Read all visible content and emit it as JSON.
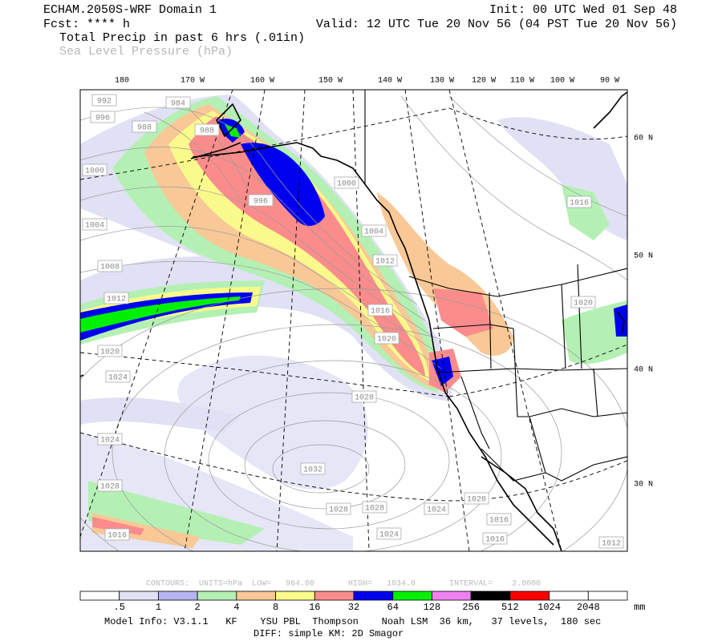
{
  "header": {
    "title": "ECHAM.2050S-WRF Domain 1",
    "init": "Init: 00 UTC Wed 01 Sep 48",
    "forecast": "Fcst: **** h",
    "valid": "Valid: 12 UTC Tue 20 Nov 56 (04 PST Tue 20 Nov 56)",
    "field_1": "Total Precip in past 6 hrs (.01in)",
    "field_2": "Sea Level Pressure (hPa)"
  },
  "map": {
    "longitude_labels": [
      "180",
      "170 W",
      "160 W",
      "150 W",
      "140 W",
      "130 W",
      "120 W",
      "110 W",
      "100 W",
      "90 W"
    ],
    "latitude_labels": [
      "60 N",
      "50 N",
      "40 N",
      "30 N"
    ],
    "isobar_labels": [
      "992",
      "984",
      "996",
      "988",
      "988",
      "1000",
      "1004",
      "1008",
      "1012",
      "1020",
      "1024",
      "1024",
      "1028",
      "1016",
      "1032",
      "1028",
      "1028",
      "1024",
      "1024",
      "1020",
      "1016",
      "1016",
      "1012",
      "1016",
      "1020",
      "996",
      "1000",
      "1004",
      "1012",
      "1016",
      "1020",
      "1028"
    ]
  },
  "contour_info": "CONTOURS:  UNITS=hPa  LOW=   964.00       HIGH=   1034.0       INTERVAL=    2.0000",
  "colorbar": {
    "colors": [
      "#ffffff",
      "#e1e1f5",
      "#b4b4ee",
      "#b4f0b4",
      "#f8c896",
      "#fafa8c",
      "#fa8c8c",
      "#0000f0",
      "#00f000",
      "#f080f0",
      "#000000",
      "#ff0000",
      "#ffffff",
      "#ffffff"
    ],
    "labels": [
      ".5",
      "1",
      "2",
      "4",
      "8",
      "16",
      "32",
      "64",
      "128",
      "256",
      "512",
      "1024",
      "2048"
    ],
    "unit": "mm"
  },
  "footer": {
    "model_info": "Model Info: V3.1.1   KF    YSU PBL  Thompson    Noah LSM  36 km,   37 levels,  180 sec",
    "diff": "DIFF: simple KM: 2D Smagor"
  }
}
